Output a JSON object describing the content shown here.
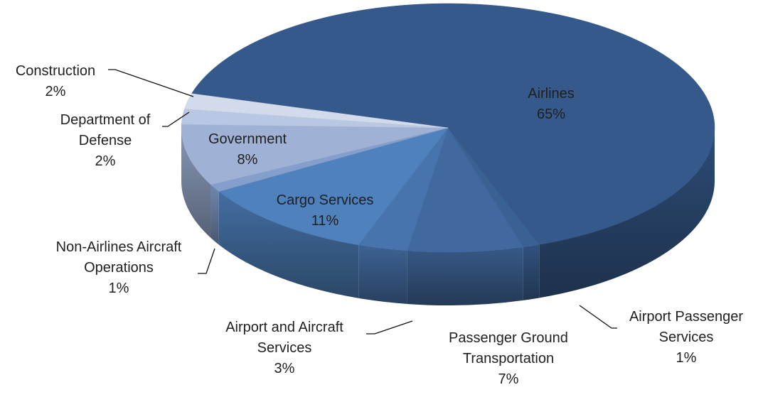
{
  "chart_data": {
    "type": "pie",
    "categories": [
      "Airlines",
      "Airport Passenger Services",
      "Passenger Ground Transportation",
      "Airport and Aircraft Services",
      "Cargo Services",
      "Non-Airlines Aircraft Operations",
      "Government",
      "Department of Defense",
      "Construction"
    ],
    "values": [
      65,
      1,
      7,
      3,
      11,
      1,
      8,
      2,
      2
    ],
    "value_labels": [
      "65%",
      "1%",
      "7%",
      "3%",
      "11%",
      "1%",
      "8%",
      "2%",
      "2%"
    ],
    "colors": [
      "#34598a",
      "#3a6194",
      "#41699f",
      "#4874ae",
      "#4f81bd",
      "#849fcb",
      "#9fb2d6",
      "#b9c8e2",
      "#d2dbeb"
    ]
  }
}
